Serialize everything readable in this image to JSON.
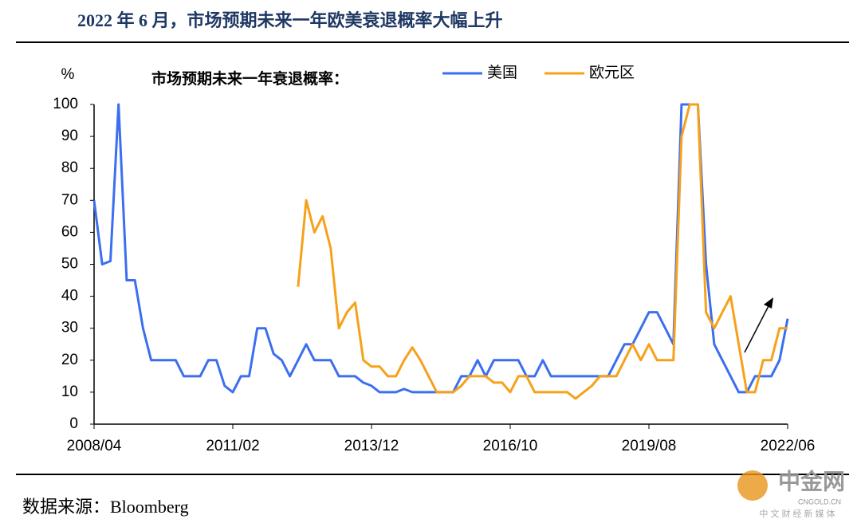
{
  "chart_data": {
    "type": "line",
    "title": "2022 年 6 月，市场预期未来一年欧美衰退概率大幅上升",
    "subtitle": "市场预期未来一年衰退概率：",
    "y_label": "%",
    "source": "数据来源：Bloomberg",
    "watermark": [
      "中金网",
      "CNGOLD.CN",
      "中 文 财 经 新 媒 体"
    ],
    "x": [
      "2008/04",
      "2008/06",
      "2008/08",
      "2008/10",
      "2008/12",
      "2009/02",
      "2009/04",
      "2009/06",
      "2009/08",
      "2009/10",
      "2009/12",
      "2010/02",
      "2010/04",
      "2010/06",
      "2010/08",
      "2010/10",
      "2010/12",
      "2011/02",
      "2011/04",
      "2011/06",
      "2011/08",
      "2011/10",
      "2011/12",
      "2012/02",
      "2012/04",
      "2012/06",
      "2012/08",
      "2012/10",
      "2012/12",
      "2013/02",
      "2013/04",
      "2013/06",
      "2013/08",
      "2013/10",
      "2013/12",
      "2014/02",
      "2014/04",
      "2014/06",
      "2014/08",
      "2014/10",
      "2014/12",
      "2015/02",
      "2015/04",
      "2015/06",
      "2015/08",
      "2015/10",
      "2015/12",
      "2016/02",
      "2016/04",
      "2016/06",
      "2016/08",
      "2016/10",
      "2016/12",
      "2017/02",
      "2017/04",
      "2017/06",
      "2017/08",
      "2017/10",
      "2017/12",
      "2018/02",
      "2018/04",
      "2018/06",
      "2018/08",
      "2018/10",
      "2018/12",
      "2019/02",
      "2019/04",
      "2019/06",
      "2019/08",
      "2019/10",
      "2019/12",
      "2020/02",
      "2020/04",
      "2020/06",
      "2020/08",
      "2020/10",
      "2020/12",
      "2021/02",
      "2021/04",
      "2021/06",
      "2021/08",
      "2021/10",
      "2021/12",
      "2022/02",
      "2022/04",
      "2022/06"
    ],
    "series": [
      {
        "name": "美国",
        "color": "#3b6ff0",
        "values": [
          70,
          50,
          51,
          100,
          45,
          45,
          30,
          20,
          20,
          20,
          20,
          15,
          15,
          15,
          20,
          20,
          12,
          10,
          15,
          15,
          30,
          30,
          22,
          20,
          15,
          20,
          25,
          20,
          20,
          20,
          15,
          15,
          15,
          13,
          12,
          10,
          10,
          10,
          11,
          10,
          10,
          10,
          10,
          10,
          10,
          15,
          15,
          20,
          15,
          20,
          20,
          20,
          20,
          15,
          15,
          20,
          15,
          15,
          15,
          15,
          15,
          15,
          15,
          15,
          20,
          25,
          25,
          30,
          35,
          35,
          30,
          25,
          100,
          100,
          100,
          50,
          25,
          20,
          15,
          10,
          10,
          15,
          15,
          15,
          20,
          33
        ]
      },
      {
        "name": "欧元区",
        "color": "#f7a11a",
        "values": [
          null,
          null,
          null,
          null,
          null,
          null,
          null,
          null,
          null,
          null,
          null,
          null,
          null,
          null,
          null,
          null,
          null,
          null,
          null,
          null,
          null,
          null,
          null,
          null,
          null,
          43,
          70,
          60,
          65,
          55,
          30,
          35,
          38,
          20,
          18,
          18,
          15,
          15,
          20,
          24,
          20,
          15,
          10,
          10,
          10,
          12,
          15,
          15,
          15,
          13,
          13,
          10,
          15,
          15,
          10,
          10,
          10,
          10,
          10,
          8,
          10,
          12,
          15,
          15,
          15,
          20,
          25,
          20,
          25,
          20,
          20,
          20,
          90,
          100,
          100,
          35,
          30,
          35,
          40,
          25,
          10,
          10,
          20,
          20,
          30,
          30
        ]
      }
    ],
    "xticks": [
      "2008/04",
      "2011/02",
      "2013/12",
      "2016/10",
      "2019/08",
      "2022/06"
    ],
    "ylim": [
      0,
      100
    ],
    "yticks": [
      0,
      10,
      20,
      30,
      40,
      50,
      60,
      70,
      80,
      90,
      100
    ],
    "grid": false
  }
}
